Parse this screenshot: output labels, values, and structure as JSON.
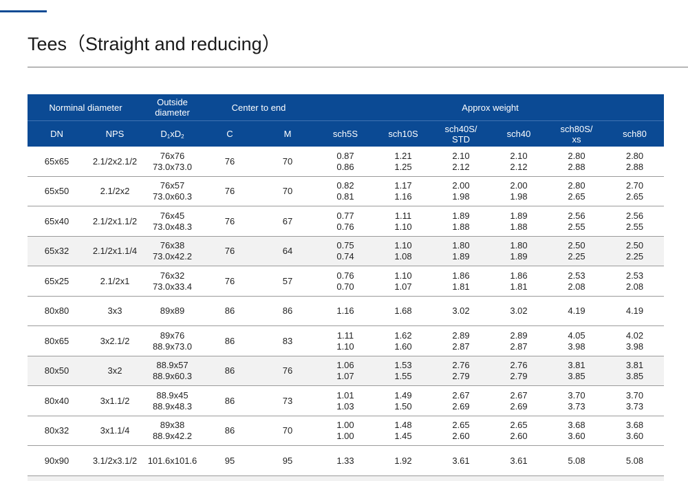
{
  "title": "Tees（Straight and reducing）",
  "table": {
    "header_groups": [
      "Norminal diameter",
      [
        "Outside",
        "diameter"
      ],
      "Center to end",
      "Approx weight"
    ],
    "columns": [
      "DN",
      "NPS",
      [
        "D",
        "1",
        "xD",
        "2"
      ],
      "C",
      "M",
      "sch5S",
      "sch10S",
      [
        "sch40S/",
        "STD"
      ],
      "sch40",
      [
        "sch80S/",
        "xs"
      ],
      "sch80"
    ],
    "rows": [
      [
        "65x65",
        "2.1/2x2.1/2",
        [
          "76x76",
          "73.0x73.0"
        ],
        "76",
        "70",
        [
          "0.87",
          "0.86"
        ],
        [
          "1.21",
          "1.25"
        ],
        [
          "2.10",
          "2.12"
        ],
        [
          "2.10",
          "2.12"
        ],
        [
          "2.80",
          "2.88"
        ],
        [
          "2.80",
          "2.88"
        ]
      ],
      [
        "65x50",
        "2.1/2x2",
        [
          "76x57",
          "73.0x60.3"
        ],
        "76",
        "70",
        [
          "0.82",
          "0.81"
        ],
        [
          "1.17",
          "1.16"
        ],
        [
          "2.00",
          "1.98"
        ],
        [
          "2.00",
          "1.98"
        ],
        [
          "2.80",
          "2.65"
        ],
        [
          "2.70",
          "2.65"
        ]
      ],
      [
        "65x40",
        "2.1/2x1.1/2",
        [
          "76x45",
          "73.0x48.3"
        ],
        "76",
        "67",
        [
          "0.77",
          "0.76"
        ],
        [
          "1.11",
          "1.10"
        ],
        [
          "1.89",
          "1.88"
        ],
        [
          "1.89",
          "1.88"
        ],
        [
          "2.56",
          "2.55"
        ],
        [
          "2.56",
          "2.55"
        ]
      ],
      [
        "65x32",
        "2.1/2x1.1/4",
        [
          "76x38",
          "73.0x42.2"
        ],
        "76",
        "64",
        [
          "0.75",
          "0.74"
        ],
        [
          "1.10",
          "1.08"
        ],
        [
          "1.80",
          "1.89"
        ],
        [
          "1.80",
          "1.89"
        ],
        [
          "2.50",
          "2.25"
        ],
        [
          "2.50",
          "2.25"
        ]
      ],
      [
        "65x25",
        "2.1/2x1",
        [
          "76x32",
          "73.0x33.4"
        ],
        "76",
        "57",
        [
          "0.76",
          "0.70"
        ],
        [
          "1.10",
          "1.07"
        ],
        [
          "1.86",
          "1.81"
        ],
        [
          "1.86",
          "1.81"
        ],
        [
          "2.53",
          "2.08"
        ],
        [
          "2.53",
          "2.08"
        ]
      ],
      [
        "80x80",
        "3x3",
        "89x89",
        "86",
        "86",
        "1.16",
        "1.68",
        "3.02",
        "3.02",
        "4.19",
        "4.19"
      ],
      [
        "80x65",
        "3x2.1/2",
        [
          "89x76",
          "88.9x73.0"
        ],
        "86",
        "83",
        [
          "1.11",
          "1.10"
        ],
        [
          "1.62",
          "1.60"
        ],
        [
          "2.89",
          "2.87"
        ],
        [
          "2.89",
          "2.87"
        ],
        [
          "4.05",
          "3.98"
        ],
        [
          "4.02",
          "3.98"
        ]
      ],
      [
        "80x50",
        "3x2",
        [
          "88.9x57",
          "88.9x60.3"
        ],
        "86",
        "76",
        [
          "1.06",
          "1.07"
        ],
        [
          "1.53",
          "1.55"
        ],
        [
          "2.76",
          "2.79"
        ],
        [
          "2.76",
          "2.79"
        ],
        [
          "3.81",
          "3.85"
        ],
        [
          "3.81",
          "3.85"
        ]
      ],
      [
        "80x40",
        "3x1.1/2",
        [
          "88.9x45",
          "88.9x48.3"
        ],
        "86",
        "73",
        [
          "1.01",
          "1.03"
        ],
        [
          "1.49",
          "1.50"
        ],
        [
          "2.67",
          "2.69"
        ],
        [
          "2.67",
          "2.69"
        ],
        [
          "3.70",
          "3.73"
        ],
        [
          "3.70",
          "3.73"
        ]
      ],
      [
        "80x32",
        "3x1.1/4",
        [
          "89x38",
          "88.9x42.2"
        ],
        "86",
        "70",
        [
          "1.00",
          "1.00"
        ],
        [
          "1.48",
          "1.45"
        ],
        [
          "2.65",
          "2.60"
        ],
        [
          "2.65",
          "2.60"
        ],
        [
          "3.68",
          "3.60"
        ],
        [
          "3.68",
          "3.60"
        ]
      ],
      [
        "90x90",
        "3.1/2x3.1/2",
        "101.6x101.6",
        "95",
        "95",
        "1.33",
        "1.92",
        "3.61",
        "3.61",
        "5.08",
        "5.08"
      ]
    ]
  }
}
